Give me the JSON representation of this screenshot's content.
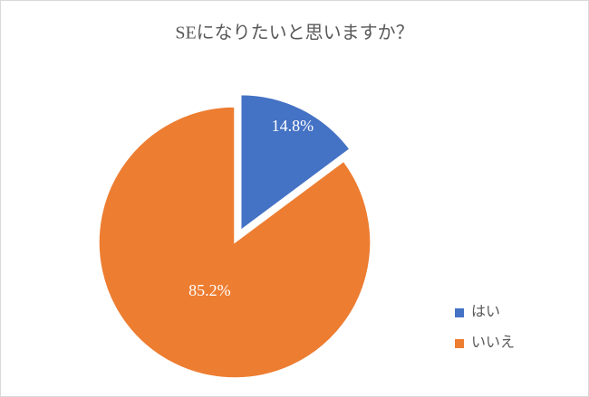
{
  "chart_data": {
    "type": "pie",
    "title": "SEになりたいと思いますか？",
    "categories": [
      "はい",
      "いいえ"
    ],
    "values": [
      14.8,
      85.2
    ],
    "value_labels": [
      "14.8%",
      "85.2%"
    ],
    "colors": [
      "#4472c4",
      "#ed7d31"
    ],
    "legend": "right"
  }
}
